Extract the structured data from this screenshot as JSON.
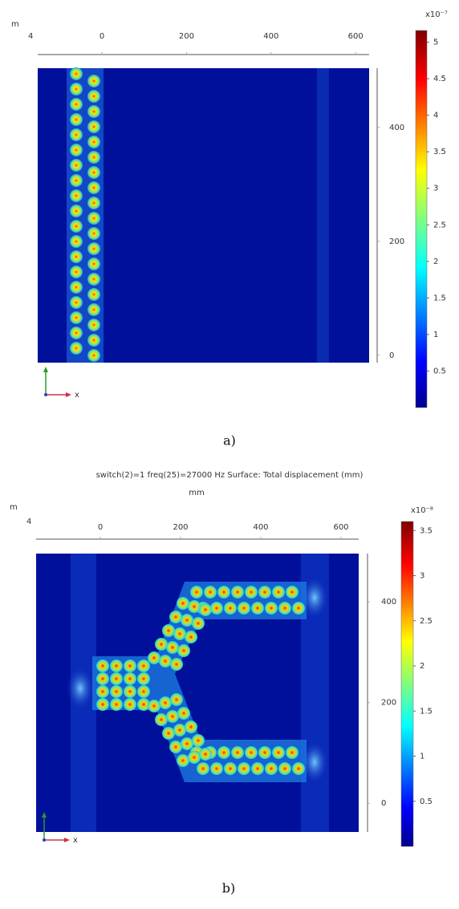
{
  "chart_data": [
    {
      "type": "heatmap",
      "y_unit_fragment": "m",
      "y_unit_number": "4",
      "axis_marker": "x",
      "caption": "a)",
      "xlim": [
        -152,
        632
      ],
      "xticks": [
        0,
        200,
        400,
        600
      ],
      "ylim": [
        -13,
        504
      ],
      "yticks": [
        0,
        200,
        400
      ],
      "colorbar": {
        "exponent": "x10⁻⁷",
        "lim": [
          0,
          5.16
        ],
        "ticks": [
          0.5,
          1,
          1.5,
          2,
          2.5,
          3,
          3.5,
          4,
          4.5,
          5
        ]
      }
    },
    {
      "type": "heatmap",
      "title": "switch(2)=1 freq(25)=27000 Hz   Surface: Total displacement (mm)",
      "xlabel": "mm",
      "y_unit_fragment": "m",
      "y_unit_number": "4",
      "axis_marker": "x",
      "caption": "b)",
      "xlim": [
        -160,
        644
      ],
      "xticks": [
        0,
        200,
        400,
        600
      ],
      "ylim": [
        -57,
        496
      ],
      "yticks": [
        0,
        200,
        400
      ],
      "colorbar": {
        "exponent": "x10⁻⁸",
        "lim": [
          0,
          3.6
        ],
        "ticks": [
          0.5,
          1,
          1.5,
          2,
          2.5,
          3,
          3.5
        ]
      }
    }
  ]
}
